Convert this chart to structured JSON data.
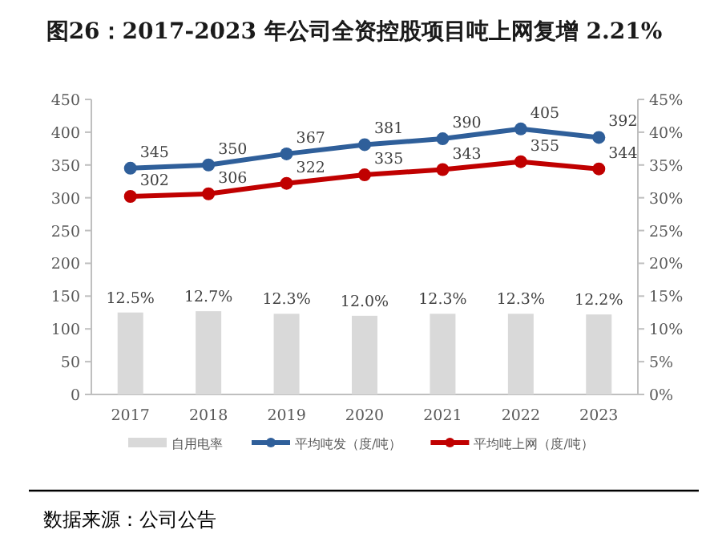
{
  "chart_data": {
    "type": "bar",
    "title": "图26：2017-2023 年公司全资控股项目吨上网复增 2.21%",
    "categories": [
      "2017",
      "2018",
      "2019",
      "2020",
      "2021",
      "2022",
      "2023"
    ],
    "series": [
      {
        "name": "自用电率",
        "axis": "y2",
        "color": "#d9d9d9",
        "values": [
          12.5,
          12.7,
          12.3,
          12.0,
          12.3,
          12.3,
          12.2
        ],
        "value_labels": [
          "12.5%",
          "12.7%",
          "12.3%",
          "12.0%",
          "12.3%",
          "12.3%",
          "12.2%"
        ]
      },
      {
        "name": "平均吨发（度/吨）",
        "type": "line",
        "color": "#2f5f9a",
        "values": [
          345,
          350,
          367,
          381,
          390,
          405,
          392
        ]
      },
      {
        "name": "平均吨上网（度/吨）",
        "type": "line",
        "color": "#c00000",
        "values": [
          302,
          306,
          322,
          335,
          343,
          355,
          344
        ]
      }
    ],
    "ylim": [
      0,
      450
    ],
    "yticks": [
      0,
      50,
      100,
      150,
      200,
      250,
      300,
      350,
      400,
      450
    ],
    "y2lim": [
      0,
      45
    ],
    "y2ticks": [
      {
        "value": 0,
        "label": "0%"
      },
      {
        "value": 5,
        "label": "5%"
      },
      {
        "value": 10,
        "label": "10%"
      },
      {
        "value": 15,
        "label": "15%"
      },
      {
        "value": 20,
        "label": "20%"
      },
      {
        "value": 25,
        "label": "25%"
      },
      {
        "value": 30,
        "label": "30%"
      },
      {
        "value": 35,
        "label": "35%"
      },
      {
        "value": 40,
        "label": "40%"
      },
      {
        "value": 45,
        "label": "45%"
      }
    ],
    "data_labels": true,
    "marker": "circle",
    "legend": "bottom",
    "grid": false,
    "annotations": [
      "数据来源：公司公告"
    ]
  }
}
